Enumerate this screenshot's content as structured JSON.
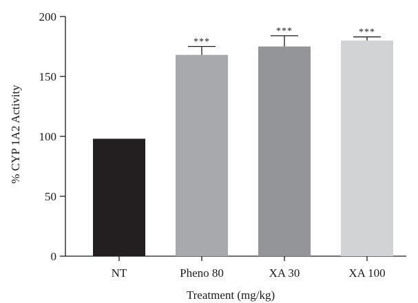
{
  "chart_data": {
    "type": "bar",
    "categories": [
      "NT",
      "Pheno 80",
      "XA 30",
      "XA 100"
    ],
    "values": [
      98,
      168,
      175,
      180
    ],
    "errors": [
      0,
      7,
      9,
      3
    ],
    "significance": [
      "",
      "***",
      "***",
      "***"
    ],
    "bar_colors": [
      "#231f20",
      "#a7a9ac",
      "#939598",
      "#d1d3d4"
    ],
    "xlabel": "Treatment (mg/kg)",
    "ylabel": "% CYP 1A2 Activity",
    "ylim": [
      0,
      200
    ],
    "yticks": [
      0,
      50,
      100,
      150,
      200
    ],
    "grid": false,
    "legend": "none"
  }
}
